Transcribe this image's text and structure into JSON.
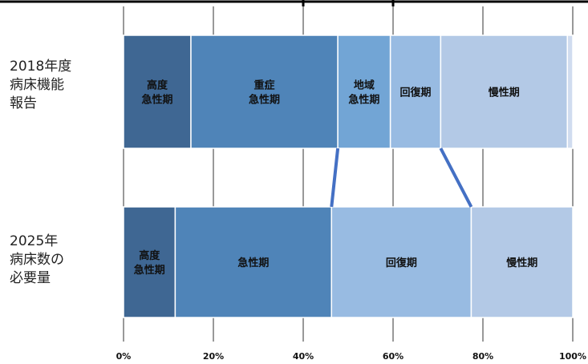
{
  "chart_data": {
    "type": "bar",
    "orientation": "horizontal",
    "stacked": true,
    "xlim": [
      0,
      100
    ],
    "x_ticks": [
      "0%",
      "20%",
      "40%",
      "60%",
      "80%",
      "100%"
    ],
    "grid": true,
    "categories": [
      "2018年度\n病床機能\n報告",
      "2025年\n病床数の\n必要量"
    ],
    "bars": [
      {
        "category": "2018年度\n病床機能\n報告",
        "segments": [
          {
            "label": "高度\n急性期",
            "value": 15,
            "color": "#3f6793"
          },
          {
            "label": "重症\n急性期",
            "value": 32.7,
            "color": "#4f84b8"
          },
          {
            "label": "地域\n急性期",
            "value": 11.7,
            "color": "#72a5d5"
          },
          {
            "label": "回復期",
            "value": 11.2,
            "color": "#98bbe2"
          },
          {
            "label": "慢性期",
            "value": 28.2,
            "color": "#b3c9e6"
          },
          {
            "label": "",
            "value": 1.2,
            "color": "#d0dcef"
          }
        ]
      },
      {
        "category": "2025年\n病床数の\n必要量",
        "segments": [
          {
            "label": "高度\n急性期",
            "value": 11.5,
            "color": "#3f6793"
          },
          {
            "label": "急性期",
            "value": 34.8,
            "color": "#4f84b8"
          },
          {
            "label": "回復期",
            "value": 31.1,
            "color": "#98bbe2"
          },
          {
            "label": "慢性期",
            "value": 22.6,
            "color": "#b3c9e6"
          }
        ]
      }
    ],
    "connectors": [
      {
        "from_pct": 47.7,
        "to_pct": 46.3
      },
      {
        "from_pct": 70.6,
        "to_pct": 77.4
      }
    ],
    "connector_color": "#4470c4"
  }
}
